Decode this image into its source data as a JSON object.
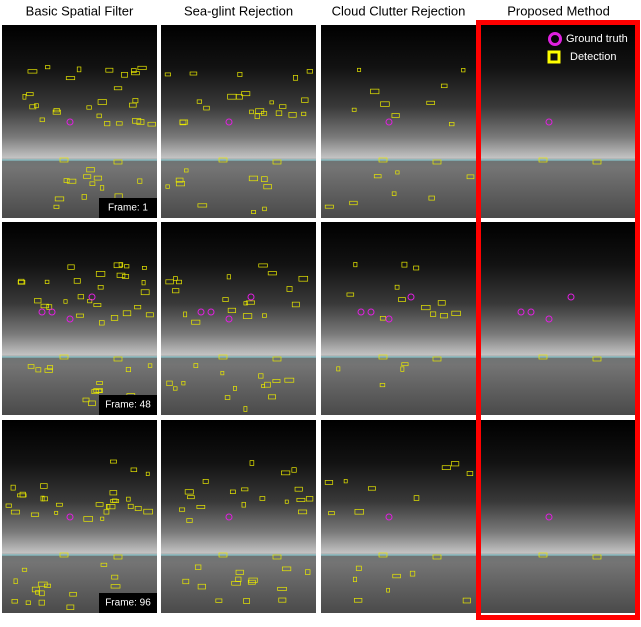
{
  "column_titles": [
    "Basic Spatial Filter",
    "Sea-glint Rejection",
    "Cloud Clutter Rejection",
    "Proposed Method"
  ],
  "frame_labels": [
    "Frame: 1",
    "Frame: 48",
    "Frame: 96"
  ],
  "legend": [
    "Ground truth",
    "Detection"
  ]
}
